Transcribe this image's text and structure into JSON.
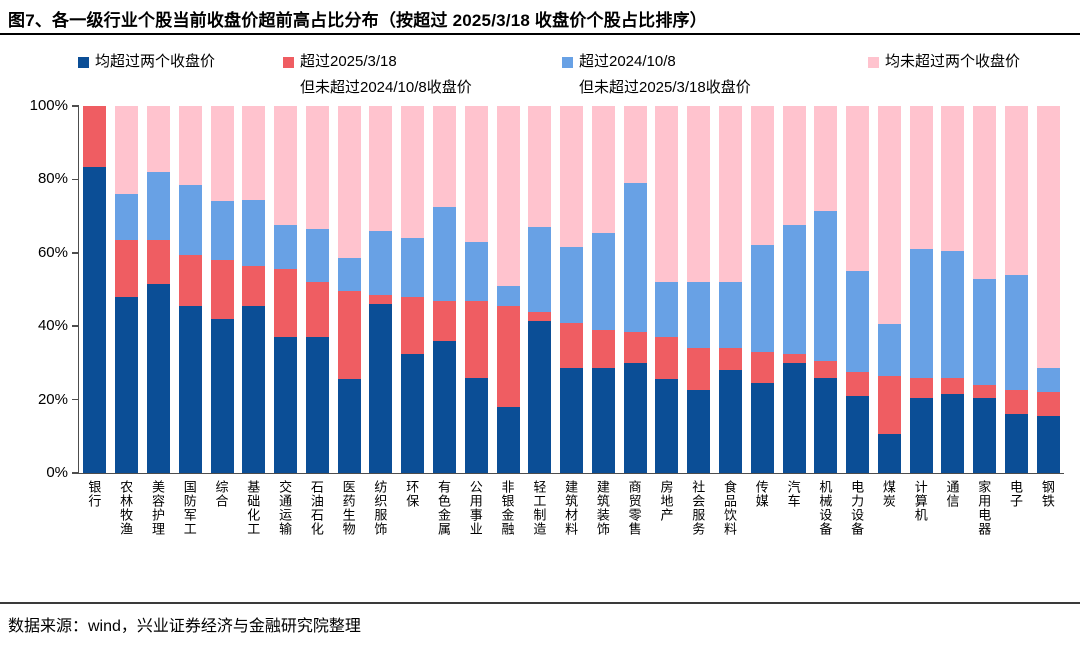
{
  "header": {
    "title": "图7、各一级行业个股当前收盘价超前高占比分布（按超过 2025/3/18 收盘价个股占比排序）"
  },
  "legend": {
    "items": [
      {
        "label": "均超过两个收盘价",
        "label_line2": "",
        "color": "#0B4E96"
      },
      {
        "label": "超过2025/3/18",
        "label_line2": "但未超过2024/10/8收盘价",
        "color": "#EF5D62"
      },
      {
        "label": "超过2024/10/8",
        "label_line2": "但未超过2025/3/18收盘价",
        "color": "#68A1E5"
      },
      {
        "label": "均未超过两个收盘价",
        "label_line2": "",
        "color": "#FFC3CE"
      }
    ]
  },
  "chart_data": {
    "type": "bar",
    "stacked": true,
    "value_unit": "percent",
    "grid": false,
    "legend_position": "top",
    "sort_note": "按超过 2025/3/18 收盘价个股占比排序",
    "title": "各一级行业个股当前收盘价超前高占比分布",
    "ylim": [
      0,
      100
    ],
    "yticks": [
      {
        "value": 100,
        "label": "100%"
      },
      {
        "value": 80,
        "label": "80%"
      },
      {
        "value": 60,
        "label": "60%"
      },
      {
        "value": 40,
        "label": "40%"
      },
      {
        "value": 20,
        "label": "20%"
      },
      {
        "value": 0,
        "label": "0%"
      }
    ],
    "categories": [
      "银行",
      "农林牧渔",
      "美容护理",
      "国防军工",
      "综合",
      "基础化工",
      "交通运输",
      "石油石化",
      "医药生物",
      "纺织服饰",
      "环保",
      "有色金属",
      "公用事业",
      "非银金融",
      "轻工制造",
      "建筑材料",
      "建筑装饰",
      "商贸零售",
      "房地产",
      "社会服务",
      "食品饮料",
      "传媒",
      "汽车",
      "机械设备",
      "电力设备",
      "煤炭",
      "计算机",
      "通信",
      "家用电器",
      "电子",
      "钢铁"
    ],
    "series": [
      {
        "name": "均超过两个收盘价",
        "color": "#0B4E96",
        "values": [
          83.5,
          48,
          51.5,
          45.5,
          42,
          45.5,
          37,
          37,
          25.5,
          46,
          32.5,
          36,
          26,
          18,
          41.5,
          28.5,
          28.5,
          30,
          25.5,
          22.5,
          28,
          24.5,
          30,
          26,
          21,
          10.5,
          20.5,
          21.5,
          20.5,
          16,
          15.5
        ]
      },
      {
        "name": "超过2025/3/18但未超过2024/10/8收盘价",
        "color": "#EF5D62",
        "values": [
          16.5,
          15.5,
          12,
          14,
          16,
          11,
          18.5,
          15,
          24,
          2.5,
          15.5,
          11,
          21,
          27.5,
          2.5,
          12.5,
          10.5,
          8.5,
          11.5,
          11.5,
          6,
          8.5,
          2.5,
          4.5,
          6.5,
          16,
          5.5,
          4.5,
          3.5,
          6.5,
          6.5
        ]
      },
      {
        "name": "超过2024/10/8但未超过2025/3/18收盘价",
        "color": "#68A1E5",
        "values": [
          0,
          12.5,
          18.5,
          19,
          16,
          18,
          12,
          14.5,
          9,
          17.5,
          16,
          25.5,
          16,
          5.5,
          23,
          20.5,
          26.5,
          40.5,
          15,
          18,
          18,
          29,
          35,
          41,
          27.5,
          14,
          35,
          34.5,
          29,
          31.5,
          6.5
        ]
      },
      {
        "name": "均未超过两个收盘价",
        "color": "#FFC3CE",
        "values": [
          0,
          24,
          18,
          21.5,
          26,
          25.5,
          32.5,
          33.5,
          41.5,
          34,
          36,
          27.5,
          37,
          49,
          33,
          38.5,
          34.5,
          21,
          48,
          48,
          48,
          38,
          32.5,
          28.5,
          45,
          59.5,
          39,
          39.5,
          47,
          46,
          71.5
        ]
      }
    ]
  },
  "footer": {
    "source": "数据来源：wind，兴业证券经济与金融研究院整理"
  }
}
